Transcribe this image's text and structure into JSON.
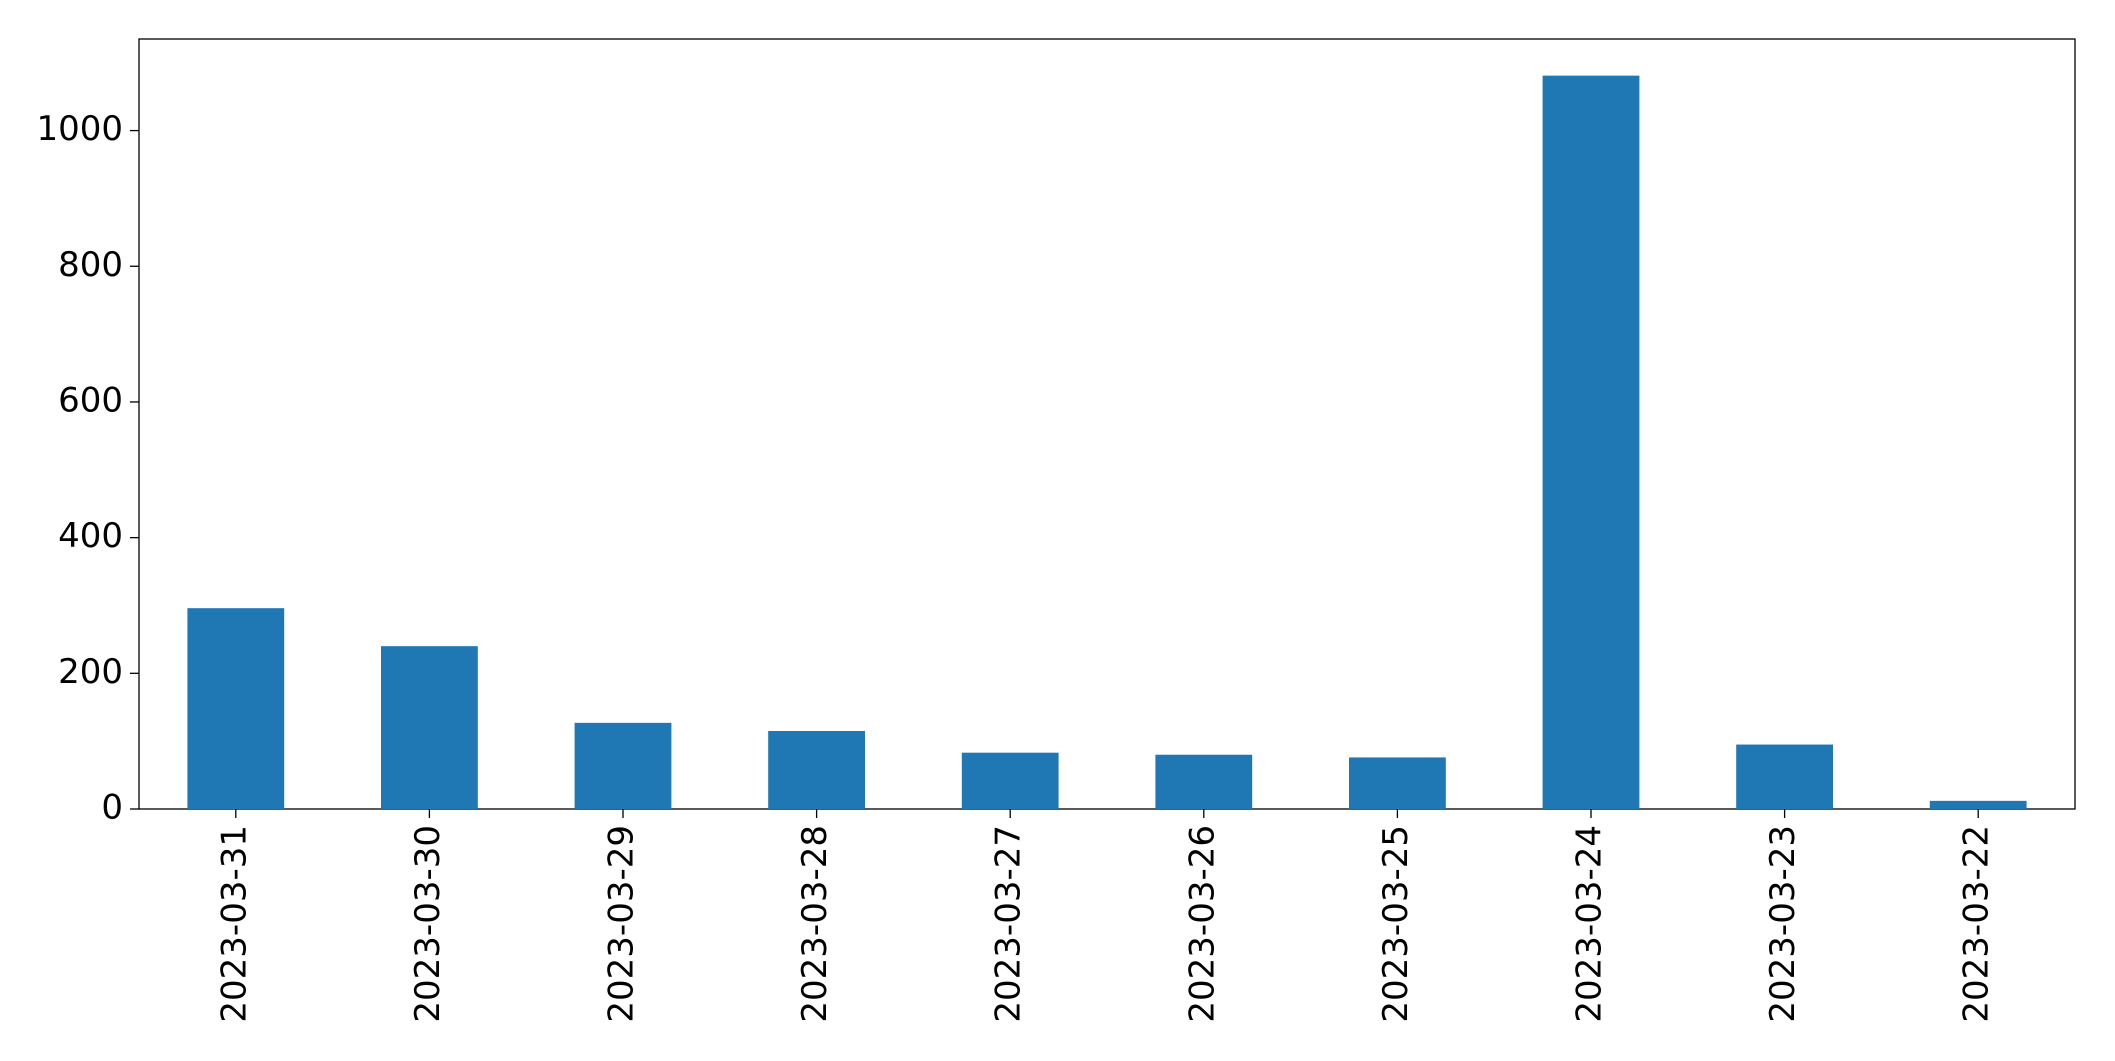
{
  "chart_data": {
    "type": "bar",
    "categories": [
      "2023-03-31",
      "2023-03-30",
      "2023-03-29",
      "2023-03-28",
      "2023-03-27",
      "2023-03-26",
      "2023-03-25",
      "2023-03-24",
      "2023-03-23",
      "2023-03-22"
    ],
    "values": [
      296,
      240,
      127,
      115,
      83,
      80,
      76,
      1081,
      95,
      12
    ],
    "color": "#1f77b4",
    "ylim": [
      0,
      1135
    ],
    "yticks": [
      0,
      200,
      400,
      600,
      800,
      1000
    ],
    "grid": false
  }
}
